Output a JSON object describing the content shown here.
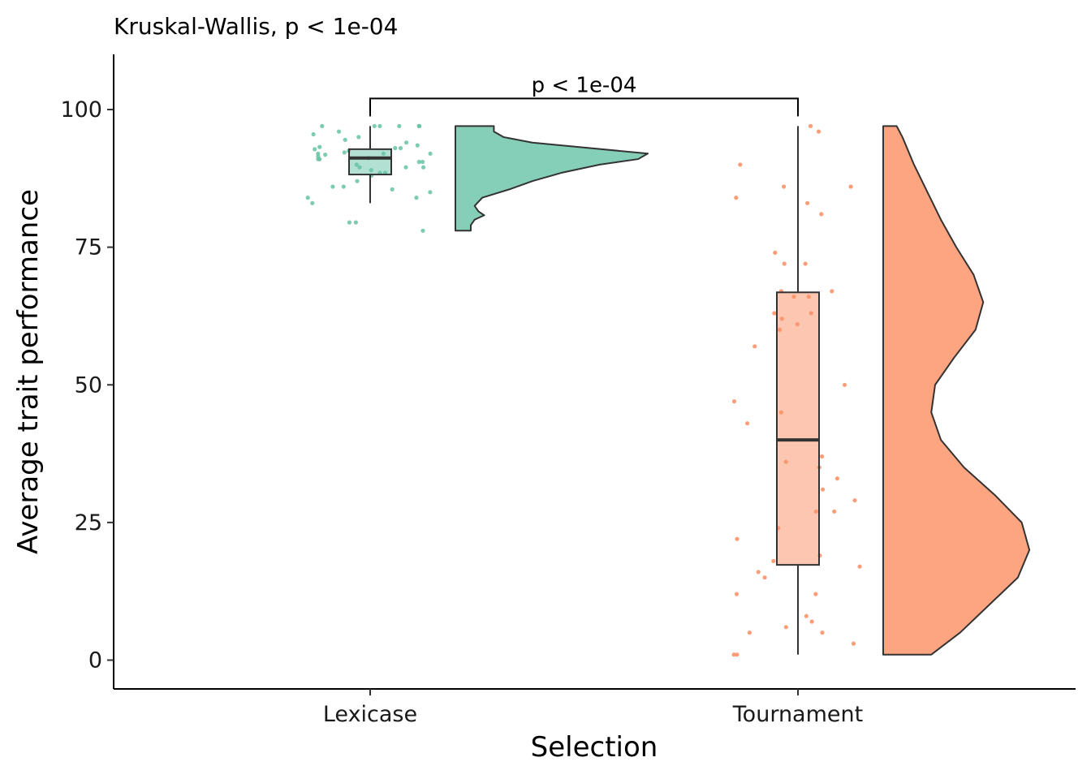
{
  "chart_data": {
    "type": "raincloud",
    "subtitle": "Kruskal-Wallis, p < 1e-04",
    "xlabel": "Selection",
    "ylabel": "Average trait performance",
    "ylim": [
      -5,
      110
    ],
    "yticks": [
      0,
      25,
      50,
      75,
      100
    ],
    "categories": [
      "Lexicase",
      "Tournament"
    ],
    "colors": {
      "Lexicase": "#66c2a5",
      "Tournament": "#fc8d62"
    },
    "comparison": {
      "groups": [
        "Lexicase",
        "Tournament"
      ],
      "label": "p < 1e-04",
      "y": 102
    },
    "groups": [
      {
        "name": "Lexicase",
        "box": {
          "min": 83,
          "q1": 88.2,
          "median": 91.2,
          "q3": 92.8,
          "max": 97
        },
        "points": [
          97,
          97,
          97,
          97,
          97,
          97,
          96,
          95.5,
          95,
          94.5,
          94,
          93.5,
          93.2,
          93,
          93,
          92.8,
          92.5,
          92.2,
          92,
          92,
          92,
          91.8,
          91.5,
          91.2,
          91,
          91,
          90.5,
          90.5,
          90,
          89.5,
          89.5,
          89.5,
          89,
          88.5,
          88.5,
          88,
          87,
          86,
          86,
          85.5,
          85,
          84,
          84,
          83,
          79.5,
          79.5,
          78
        ],
        "density": [
          [
            78,
            0.08
          ],
          [
            79,
            0.08
          ],
          [
            80,
            0.1
          ],
          [
            80.8,
            0.15
          ],
          [
            81.5,
            0.12
          ],
          [
            82.5,
            0.1
          ],
          [
            84,
            0.14
          ],
          [
            85.5,
            0.28
          ],
          [
            87,
            0.4
          ],
          [
            88.5,
            0.55
          ],
          [
            90,
            0.75
          ],
          [
            91,
            0.95
          ],
          [
            92,
            1.0
          ],
          [
            93,
            0.7
          ],
          [
            94,
            0.4
          ],
          [
            95,
            0.25
          ],
          [
            96,
            0.2
          ],
          [
            97,
            0.2
          ]
        ]
      },
      {
        "name": "Tournament",
        "box": {
          "min": 1,
          "q1": 17.3,
          "median": 40,
          "q3": 66.8,
          "max": 97
        },
        "points": [
          97,
          96,
          90,
          86,
          86,
          84,
          83,
          81,
          74,
          72,
          72,
          67,
          67,
          66,
          66,
          63,
          63,
          62,
          61,
          60,
          57,
          50,
          47,
          45,
          43,
          37,
          36,
          35,
          33,
          31,
          29,
          27,
          27,
          24,
          22,
          19,
          18,
          17,
          16,
          15,
          12,
          12,
          8,
          7,
          6,
          5,
          5,
          3,
          1,
          1
        ],
        "density": [
          [
            1,
            0.25
          ],
          [
            5,
            0.4
          ],
          [
            10,
            0.55
          ],
          [
            15,
            0.7
          ],
          [
            20,
            0.76
          ],
          [
            25,
            0.72
          ],
          [
            30,
            0.58
          ],
          [
            35,
            0.42
          ],
          [
            40,
            0.3
          ],
          [
            45,
            0.25
          ],
          [
            50,
            0.27
          ],
          [
            55,
            0.37
          ],
          [
            60,
            0.48
          ],
          [
            65,
            0.52
          ],
          [
            70,
            0.47
          ],
          [
            75,
            0.38
          ],
          [
            80,
            0.3
          ],
          [
            85,
            0.23
          ],
          [
            90,
            0.16
          ],
          [
            95,
            0.1
          ],
          [
            97,
            0.07
          ]
        ]
      }
    ]
  }
}
